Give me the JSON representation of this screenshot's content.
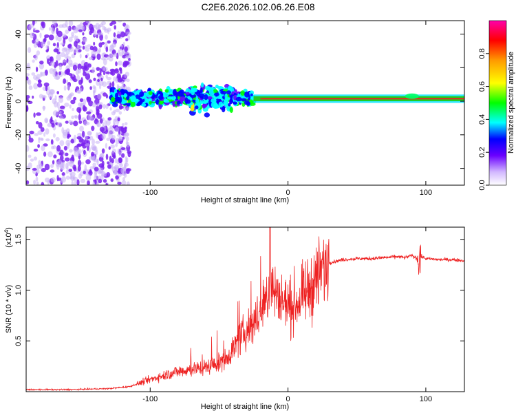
{
  "title": "C2E6.2026.102.06.26.E08",
  "chart_data": [
    {
      "type": "heatmap",
      "xlabel": "Height of straight line (km)",
      "ylabel": "Frequency (Hz)",
      "xlim": [
        -190,
        128
      ],
      "ylim": [
        -50,
        48
      ],
      "xticks": [
        -100,
        0,
        100
      ],
      "yticks": [
        -40,
        -20,
        0,
        20,
        40
      ],
      "colorbar": {
        "label": "Normalized spectral amplitude",
        "range": [
          0,
          1
        ],
        "ticks": [
          "0.0",
          "0.2",
          "0.4",
          "0.6",
          "0.8"
        ]
      },
      "features": [
        {
          "region": "scattered low-amplitude noise",
          "x": [
            -190,
            -115
          ],
          "freq": [
            -50,
            48
          ],
          "amplitude": 0.15
        },
        {
          "region": "broad band",
          "x": [
            -128,
            -25
          ],
          "freq": [
            -8,
            10
          ],
          "amplitude": 0.35
        },
        {
          "region": "narrow line",
          "x": [
            -25,
            128
          ],
          "freq": [
            0,
            3
          ],
          "amplitude": 0.9
        }
      ]
    },
    {
      "type": "line",
      "xlabel": "Height of straight line (km)",
      "ylabel": "SNR (10 * v/v)",
      "multiplier": "(x10",
      "multiplier_exp": "4",
      "multiplier_close": ")",
      "xlim": [
        -190,
        128
      ],
      "ylim": [
        0,
        1.62
      ],
      "xticks": [
        -100,
        0,
        100
      ],
      "yticks": [
        "0.5",
        "1.0",
        "1.5"
      ],
      "series": [
        {
          "name": "SNR",
          "color": "#ee2222",
          "x": [
            -190,
            -160,
            -130,
            -115,
            -100,
            -90,
            -80,
            -70,
            -60,
            -50,
            -45,
            -40,
            -35,
            -30,
            -25,
            -20,
            -15,
            -12,
            -10,
            -5,
            0,
            5,
            10,
            15,
            20,
            25,
            30,
            40,
            50,
            60,
            70,
            80,
            85,
            90,
            95,
            97,
            100,
            110,
            120,
            128
          ],
          "y": [
            0.02,
            0.02,
            0.03,
            0.05,
            0.12,
            0.16,
            0.2,
            0.22,
            0.24,
            0.28,
            0.32,
            0.42,
            0.52,
            0.6,
            0.68,
            0.78,
            0.9,
            1.05,
            0.98,
            0.9,
            0.85,
            0.86,
            0.92,
            1.0,
            1.1,
            1.2,
            1.27,
            1.3,
            1.31,
            1.31,
            1.32,
            1.33,
            1.32,
            1.34,
            1.3,
            1.33,
            1.31,
            1.3,
            1.3,
            1.29
          ]
        }
      ]
    }
  ]
}
